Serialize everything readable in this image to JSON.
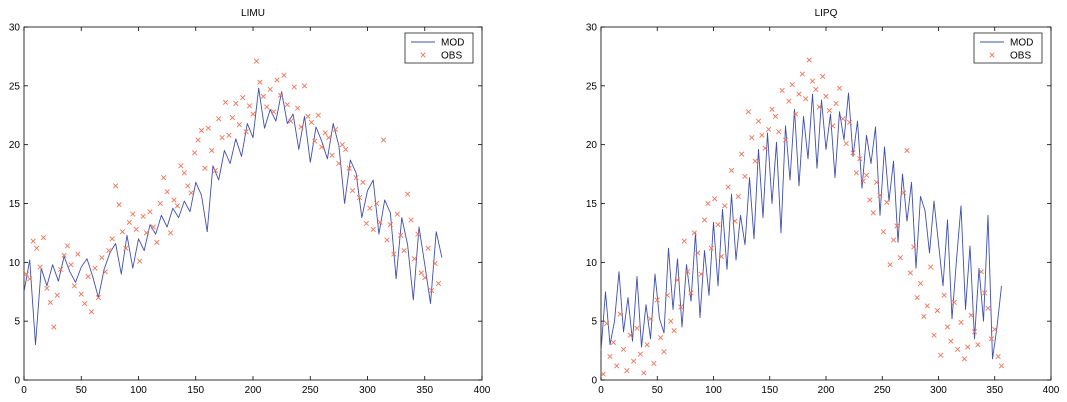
{
  "chart_data": [
    {
      "type": "line",
      "title": "LIMU",
      "xlabel": "",
      "ylabel": "",
      "xlim": [
        0,
        400
      ],
      "ylim": [
        0,
        30
      ],
      "xticks": [
        "0",
        "50",
        "100",
        "150",
        "200",
        "250",
        "300",
        "350",
        "400"
      ],
      "yticks": [
        "0",
        "5",
        "10",
        "15",
        "20",
        "25",
        "30"
      ],
      "grid": false,
      "legend_position": "top-right",
      "series": [
        {
          "name": "MOD",
          "style": "line",
          "color": "#3f4fb0",
          "x": [
            0,
            5,
            10,
            15,
            20,
            25,
            30,
            35,
            40,
            45,
            50,
            55,
            60,
            65,
            70,
            75,
            80,
            85,
            90,
            95,
            100,
            105,
            110,
            115,
            120,
            125,
            130,
            135,
            140,
            145,
            150,
            155,
            160,
            165,
            170,
            175,
            180,
            185,
            190,
            195,
            200,
            205,
            210,
            215,
            220,
            225,
            230,
            235,
            240,
            245,
            250,
            255,
            260,
            265,
            270,
            275,
            280,
            285,
            290,
            295,
            300,
            305,
            310,
            315,
            320,
            325,
            330,
            335,
            340,
            345,
            350,
            355,
            360,
            365
          ],
          "y": [
            7.5,
            10.2,
            3.0,
            9.5,
            8.0,
            9.8,
            8.4,
            10.5,
            9.2,
            8.3,
            9.6,
            10.3,
            8.8,
            7.0,
            9.4,
            10.8,
            11.6,
            9.0,
            12.3,
            9.5,
            12.0,
            11.0,
            13.2,
            12.4,
            14.0,
            13.0,
            14.6,
            13.8,
            15.2,
            14.3,
            16.8,
            15.7,
            12.6,
            18.2,
            17.0,
            19.5,
            18.4,
            20.5,
            19.0,
            21.8,
            20.6,
            24.8,
            21.4,
            23.0,
            22.0,
            24.5,
            21.8,
            22.6,
            19.6,
            22.4,
            18.5,
            21.5,
            20.3,
            18.8,
            21.8,
            19.9,
            15.0,
            18.7,
            17.6,
            13.8,
            16.1,
            17.0,
            12.4,
            15.3,
            14.2,
            8.6,
            13.8,
            11.5,
            6.8,
            13.0,
            9.8,
            6.5,
            12.6,
            10.4
          ]
        },
        {
          "name": "OBS",
          "style": "marker",
          "color": "#f0745a",
          "x": [
            2,
            5,
            8,
            11,
            14,
            17,
            20,
            23,
            26,
            29,
            32,
            35,
            38,
            41,
            44,
            47,
            50,
            53,
            56,
            59,
            62,
            65,
            68,
            71,
            74,
            77,
            80,
            83,
            86,
            89,
            92,
            95,
            98,
            101,
            104,
            107,
            110,
            113,
            116,
            119,
            122,
            125,
            128,
            131,
            134,
            137,
            140,
            143,
            146,
            149,
            152,
            155,
            158,
            161,
            164,
            167,
            170,
            173,
            176,
            179,
            182,
            185,
            188,
            191,
            194,
            197,
            200,
            203,
            206,
            209,
            212,
            215,
            218,
            221,
            224,
            227,
            230,
            233,
            236,
            239,
            242,
            245,
            248,
            251,
            254,
            257,
            260,
            263,
            266,
            269,
            272,
            275,
            278,
            281,
            284,
            287,
            290,
            293,
            296,
            299,
            302,
            305,
            308,
            311,
            314,
            317,
            320,
            323,
            326,
            329,
            332,
            335,
            338,
            341,
            344,
            347,
            350,
            353,
            356,
            359,
            362
          ],
          "y": [
            9.0,
            8.6,
            11.8,
            11.2,
            9.6,
            12.1,
            7.8,
            6.6,
            4.5,
            7.2,
            9.4,
            10.6,
            11.4,
            9.8,
            8.0,
            10.7,
            7.3,
            6.5,
            8.8,
            5.8,
            9.5,
            7.0,
            10.4,
            9.2,
            11.0,
            12.0,
            16.5,
            14.9,
            12.6,
            11.2,
            13.4,
            14.1,
            12.8,
            10.1,
            13.9,
            12.5,
            14.3,
            13.0,
            11.7,
            15.0,
            17.2,
            16.0,
            12.5,
            15.3,
            14.8,
            18.2,
            17.6,
            16.5,
            15.9,
            19.3,
            20.4,
            21.2,
            18.0,
            21.4,
            19.5,
            17.8,
            22.2,
            20.6,
            23.6,
            20.8,
            22.3,
            23.5,
            21.7,
            24.0,
            21.1,
            23.3,
            22.6,
            27.1,
            25.3,
            24.1,
            23.2,
            24.7,
            22.8,
            25.5,
            24.2,
            25.9,
            23.4,
            22.0,
            24.9,
            23.1,
            21.5,
            25.0,
            22.4,
            21.9,
            20.3,
            22.5,
            19.8,
            21.0,
            20.6,
            19.1,
            21.3,
            18.4,
            20.0,
            19.6,
            18.0,
            16.1,
            17.2,
            15.5,
            16.8,
            13.3,
            14.6,
            12.8,
            15.0,
            13.4,
            20.4,
            11.9,
            13.2,
            10.7,
            14.1,
            12.3,
            11.0,
            15.8,
            13.6,
            10.3,
            12.4,
            9.1,
            8.7,
            11.2,
            7.6,
            9.9,
            8.2
          ]
        }
      ]
    },
    {
      "type": "line",
      "title": "LIPQ",
      "xlabel": "",
      "ylabel": "",
      "xlim": [
        0,
        400
      ],
      "ylim": [
        0,
        30
      ],
      "xticks": [
        "0",
        "50",
        "100",
        "150",
        "200",
        "250",
        "300",
        "350",
        "400"
      ],
      "yticks": [
        "0",
        "5",
        "10",
        "15",
        "20",
        "25",
        "30"
      ],
      "grid": false,
      "legend_position": "top-right",
      "series": [
        {
          "name": "MOD",
          "style": "line",
          "color": "#3f4fb0",
          "x": [
            0,
            4,
            8,
            12,
            16,
            20,
            24,
            28,
            32,
            36,
            40,
            44,
            48,
            52,
            56,
            60,
            64,
            68,
            72,
            76,
            80,
            84,
            88,
            92,
            96,
            100,
            104,
            108,
            112,
            116,
            120,
            124,
            128,
            132,
            136,
            140,
            144,
            148,
            152,
            156,
            160,
            164,
            168,
            172,
            176,
            180,
            184,
            188,
            192,
            196,
            200,
            204,
            208,
            212,
            216,
            220,
            224,
            228,
            232,
            236,
            240,
            244,
            248,
            252,
            256,
            260,
            264,
            268,
            272,
            276,
            280,
            284,
            288,
            292,
            296,
            300,
            304,
            308,
            312,
            316,
            320,
            324,
            328,
            332,
            336,
            340,
            344,
            348,
            352,
            356
          ],
          "y": [
            2.5,
            7.5,
            3.0,
            5.0,
            9.2,
            4.1,
            7.0,
            3.3,
            8.8,
            2.8,
            6.4,
            3.5,
            9.0,
            5.2,
            4.0,
            11.2,
            6.0,
            10.3,
            4.5,
            9.8,
            6.7,
            12.5,
            5.3,
            11.0,
            7.2,
            13.4,
            8.0,
            14.5,
            9.4,
            15.8,
            10.2,
            14.0,
            11.5,
            17.2,
            12.0,
            19.6,
            13.8,
            21.0,
            15.0,
            20.2,
            12.5,
            21.6,
            17.0,
            23.0,
            16.5,
            22.4,
            18.8,
            24.3,
            18.0,
            23.8,
            19.6,
            22.6,
            17.2,
            22.8,
            20.4,
            24.4,
            19.0,
            22.0,
            16.3,
            20.8,
            18.4,
            21.5,
            14.0,
            19.8,
            15.2,
            18.6,
            11.7,
            17.5,
            13.5,
            16.8,
            9.5,
            15.6,
            14.4,
            10.8,
            15.2,
            11.6,
            8.0,
            13.6,
            5.2,
            10.2,
            14.8,
            6.0,
            11.4,
            3.5,
            9.5,
            5.0,
            14.0,
            1.8,
            4.5,
            8.0
          ]
        },
        {
          "name": "OBS",
          "style": "marker",
          "color": "#f0745a",
          "x": [
            2,
            5,
            8,
            11,
            14,
            17,
            20,
            23,
            26,
            29,
            32,
            35,
            38,
            41,
            44,
            47,
            50,
            53,
            56,
            59,
            62,
            65,
            68,
            71,
            74,
            77,
            80,
            83,
            86,
            89,
            92,
            95,
            98,
            101,
            104,
            107,
            110,
            113,
            116,
            119,
            122,
            125,
            128,
            131,
            134,
            137,
            140,
            143,
            146,
            149,
            152,
            155,
            158,
            161,
            164,
            167,
            170,
            173,
            176,
            179,
            182,
            185,
            188,
            191,
            194,
            197,
            200,
            203,
            206,
            209,
            212,
            215,
            218,
            221,
            224,
            227,
            230,
            233,
            236,
            239,
            242,
            245,
            248,
            251,
            254,
            257,
            260,
            263,
            266,
            269,
            272,
            275,
            278,
            281,
            284,
            287,
            290,
            293,
            296,
            299,
            302,
            305,
            308,
            311,
            314,
            317,
            320,
            323,
            326,
            329,
            332,
            335,
            338,
            341,
            344,
            347,
            350,
            353,
            356
          ],
          "y": [
            0.5,
            4.8,
            2.0,
            3.2,
            1.2,
            5.6,
            2.6,
            0.8,
            3.8,
            1.6,
            4.4,
            2.2,
            0.6,
            3.0,
            5.2,
            1.4,
            6.8,
            3.6,
            2.4,
            7.2,
            5.0,
            4.2,
            8.5,
            6.2,
            11.8,
            9.2,
            7.4,
            12.5,
            10.8,
            9.0,
            13.6,
            15.0,
            11.2,
            15.4,
            13.2,
            10.5,
            14.8,
            16.4,
            17.8,
            13.5,
            15.6,
            19.2,
            17.3,
            22.8,
            20.6,
            18.6,
            22.0,
            20.8,
            19.7,
            21.3,
            23.0,
            22.4,
            21.1,
            24.6,
            20.4,
            23.7,
            25.1,
            22.6,
            24.3,
            26.0,
            23.9,
            27.2,
            25.4,
            24.7,
            23.2,
            25.8,
            24.1,
            22.9,
            21.6,
            23.5,
            24.8,
            22.2,
            20.1,
            21.9,
            19.3,
            17.6,
            18.8,
            16.9,
            17.4,
            15.3,
            14.2,
            16.8,
            15.7,
            12.6,
            15.1,
            9.8,
            11.9,
            13.1,
            10.4,
            15.9,
            19.5,
            9.1,
            11.3,
            7.0,
            8.2,
            5.4,
            6.3,
            9.6,
            3.8,
            5.9,
            2.1,
            7.2,
            4.5,
            3.3,
            6.6,
            2.6,
            4.9,
            1.8,
            2.8,
            5.5,
            4.1,
            3.0,
            9.2,
            7.4,
            6.1,
            3.5,
            4.3,
            2.0,
            1.2
          ]
        }
      ]
    }
  ]
}
